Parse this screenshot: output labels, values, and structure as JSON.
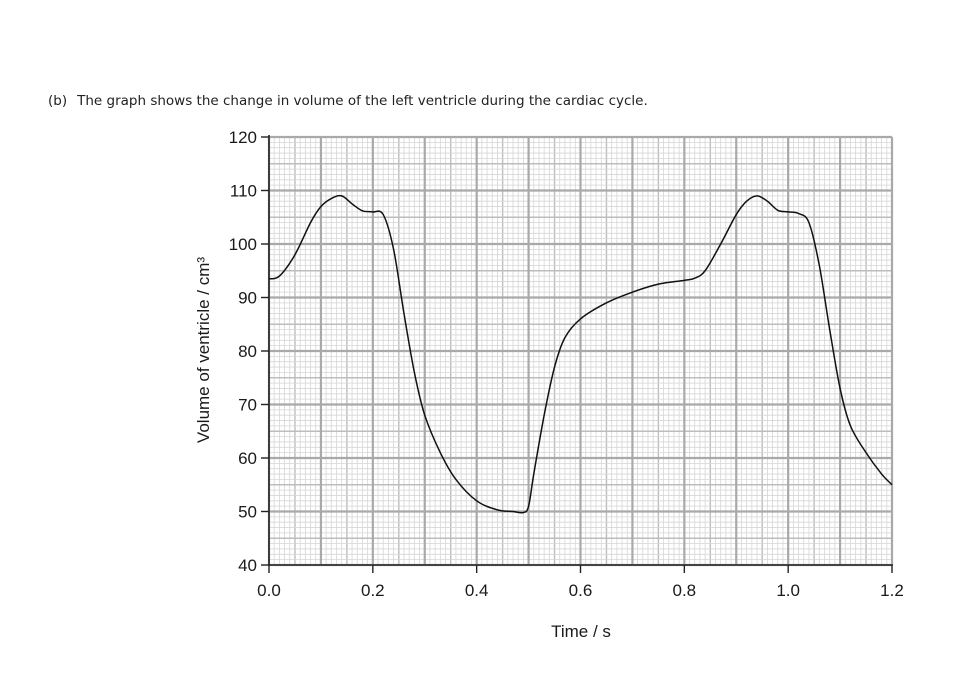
{
  "question": {
    "number": "(b)",
    "text": "The graph shows the change in volume of the left ventricle during the cardiac cycle."
  },
  "chart_data": {
    "type": "line",
    "title": "",
    "xlabel": "Time / s",
    "ylabel": "Volume of ventricle / cm³",
    "xlim": [
      0,
      1.2
    ],
    "ylim": [
      40,
      120
    ],
    "x_ticks": [
      0.0,
      0.2,
      0.4,
      0.6,
      0.8,
      1.0,
      1.2
    ],
    "x_tick_labels": [
      "0.0",
      "0.2",
      "0.4",
      "0.6",
      "0.8",
      "1.0",
      "1.2"
    ],
    "y_ticks": [
      40,
      50,
      60,
      70,
      80,
      90,
      100,
      110,
      120
    ],
    "y_tick_labels": [
      "40",
      "50",
      "60",
      "70",
      "80",
      "90",
      "100",
      "110",
      "120"
    ],
    "grid": true,
    "series": [
      {
        "name": "",
        "x": [
          0.0,
          0.02,
          0.05,
          0.08,
          0.1,
          0.12,
          0.14,
          0.16,
          0.18,
          0.2,
          0.22,
          0.24,
          0.26,
          0.28,
          0.3,
          0.33,
          0.36,
          0.4,
          0.44,
          0.47,
          0.49,
          0.5,
          0.51,
          0.53,
          0.55,
          0.57,
          0.6,
          0.65,
          0.7,
          0.75,
          0.8,
          0.82,
          0.84,
          0.87,
          0.9,
          0.92,
          0.94,
          0.96,
          0.98,
          1.0,
          1.02,
          1.04,
          1.06,
          1.08,
          1.1,
          1.12,
          1.15,
          1.18,
          1.2
        ],
        "y": [
          93.5,
          94,
          98,
          104,
          107,
          108.5,
          109,
          107.5,
          106.2,
          106,
          105.5,
          99,
          87,
          76,
          68,
          61,
          56,
          52,
          50.3,
          50,
          49.8,
          51,
          57,
          68,
          77,
          82.5,
          86,
          89,
          91,
          92.5,
          93.2,
          93.6,
          95,
          100,
          105.5,
          108,
          109,
          108,
          106.3,
          106,
          105.7,
          104,
          96,
          84,
          73,
          66,
          61,
          57,
          55
        ]
      }
    ]
  }
}
